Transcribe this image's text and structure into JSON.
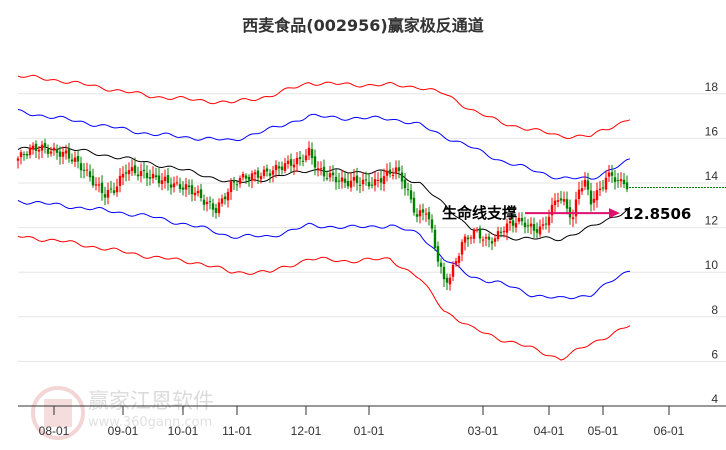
{
  "chart_data": {
    "type": "candlestick",
    "title": "西麦食品(002956)赢家极反通道",
    "ylim": [
      4,
      19
    ],
    "yticks": [
      4,
      6,
      8,
      10,
      12,
      14,
      16,
      18
    ],
    "xlim": [
      0,
      224
    ],
    "xticks": [
      {
        "label": "08-01",
        "i": 12
      },
      {
        "label": "09-01",
        "i": 35
      },
      {
        "label": "10-01",
        "i": 55
      },
      {
        "label": "11-01",
        "i": 73
      },
      {
        "label": "12-01",
        "i": 96
      },
      {
        "label": "01-01",
        "i": 117
      },
      {
        "label": "03-01",
        "i": 155
      },
      {
        "label": "04-01",
        "i": 177
      },
      {
        "label": "05-01",
        "i": 195
      },
      {
        "label": "06-01",
        "i": 217
      }
    ],
    "close": [
      [
        0,
        15.1
      ],
      [
        4,
        15.5
      ],
      [
        7,
        15.6
      ],
      [
        12,
        15.4
      ],
      [
        16,
        15.3
      ],
      [
        19,
        15.0
      ],
      [
        22,
        14.6
      ],
      [
        26,
        13.9
      ],
      [
        29,
        13.5
      ],
      [
        32,
        13.7
      ],
      [
        36,
        14.6
      ],
      [
        39,
        14.5
      ],
      [
        42,
        14.4
      ],
      [
        46,
        14.2
      ],
      [
        49,
        14.1
      ],
      [
        52,
        13.9
      ],
      [
        56,
        13.8
      ],
      [
        59,
        13.6
      ],
      [
        62,
        13.2
      ],
      [
        66,
        12.8
      ],
      [
        68,
        13.2
      ],
      [
        71,
        13.9
      ],
      [
        74,
        14.2
      ],
      [
        77,
        14.3
      ],
      [
        81,
        14.4
      ],
      [
        84,
        14.5
      ],
      [
        87,
        14.7
      ],
      [
        91,
        14.9
      ],
      [
        94,
        15.0
      ],
      [
        97,
        15.4
      ],
      [
        100,
        14.6
      ],
      [
        102,
        14.4
      ],
      [
        106,
        14.2
      ],
      [
        109,
        14.0
      ],
      [
        112,
        14.1
      ],
      [
        116,
        14.0
      ],
      [
        119,
        14.0
      ],
      [
        122,
        14.3
      ],
      [
        126,
        14.6
      ],
      [
        128,
        14.2
      ],
      [
        131,
        13.2
      ],
      [
        133,
        12.5
      ],
      [
        136,
        12.8
      ],
      [
        138,
        11.8
      ],
      [
        140,
        10.6
      ],
      [
        142,
        9.6
      ],
      [
        144,
        9.8
      ],
      [
        146,
        10.5
      ],
      [
        148,
        11.3
      ],
      [
        151,
        11.7
      ],
      [
        153,
        11.8
      ],
      [
        156,
        11.4
      ],
      [
        159,
        11.5
      ],
      [
        162,
        12.0
      ],
      [
        166,
        12.3
      ],
      [
        169,
        12.2
      ],
      [
        172,
        11.9
      ],
      [
        175,
        12.0
      ],
      [
        177,
        12.6
      ],
      [
        180,
        13.4
      ],
      [
        182,
        13.1
      ],
      [
        185,
        12.4
      ],
      [
        187,
        13.8
      ],
      [
        189,
        14.0
      ],
      [
        191,
        13.2
      ],
      [
        193,
        13.5
      ],
      [
        196,
        14.2
      ],
      [
        198,
        14.4
      ],
      [
        200,
        14.0
      ],
      [
        202,
        14.1
      ],
      [
        203,
        13.8
      ]
    ],
    "series": [
      {
        "color": "#000000",
        "points": [
          [
            0,
            15.5
          ],
          [
            14,
            15.6
          ],
          [
            27,
            15.3
          ],
          [
            44,
            14.9
          ],
          [
            61,
            14.4
          ],
          [
            71,
            14.0
          ],
          [
            84,
            14.2
          ],
          [
            97,
            14.6
          ],
          [
            111,
            14.5
          ],
          [
            124,
            14.5
          ],
          [
            134,
            14.0
          ],
          [
            142,
            13.0
          ],
          [
            151,
            12.0
          ],
          [
            161,
            11.6
          ],
          [
            171,
            11.5
          ],
          [
            181,
            11.5
          ],
          [
            191,
            12.0
          ],
          [
            204,
            12.85
          ]
        ]
      },
      {
        "color": "#0000ff",
        "points": [
          [
            0,
            17.2
          ],
          [
            14,
            16.9
          ],
          [
            27,
            16.6
          ],
          [
            44,
            16.2
          ],
          [
            61,
            16.0
          ],
          [
            71,
            15.9
          ],
          [
            84,
            16.4
          ],
          [
            97,
            17.0
          ],
          [
            111,
            16.9
          ],
          [
            124,
            16.9
          ],
          [
            134,
            16.6
          ],
          [
            142,
            16.1
          ],
          [
            151,
            15.6
          ],
          [
            161,
            15.0
          ],
          [
            171,
            14.6
          ],
          [
            181,
            14.2
          ],
          [
            191,
            14.2
          ],
          [
            204,
            15.0
          ]
        ]
      },
      {
        "color": "#0000ff",
        "points": [
          [
            0,
            13.2
          ],
          [
            14,
            13.0
          ],
          [
            27,
            12.8
          ],
          [
            44,
            12.5
          ],
          [
            61,
            12.0
          ],
          [
            71,
            11.6
          ],
          [
            84,
            11.6
          ],
          [
            97,
            12.1
          ],
          [
            111,
            12.0
          ],
          [
            124,
            12.1
          ],
          [
            134,
            11.7
          ],
          [
            142,
            10.6
          ],
          [
            151,
            9.8
          ],
          [
            161,
            9.5
          ],
          [
            171,
            9.0
          ],
          [
            181,
            8.8
          ],
          [
            191,
            9.0
          ],
          [
            204,
            10.1
          ]
        ]
      },
      {
        "color": "#ff0000",
        "points": [
          [
            0,
            18.8
          ],
          [
            14,
            18.6
          ],
          [
            27,
            18.3
          ],
          [
            44,
            17.9
          ],
          [
            61,
            17.7
          ],
          [
            71,
            17.6
          ],
          [
            84,
            17.9
          ],
          [
            97,
            18.5
          ],
          [
            111,
            18.4
          ],
          [
            124,
            18.4
          ],
          [
            134,
            18.3
          ],
          [
            142,
            18.0
          ],
          [
            151,
            17.3
          ],
          [
            161,
            16.7
          ],
          [
            171,
            16.4
          ],
          [
            181,
            16.1
          ],
          [
            191,
            16.1
          ],
          [
            204,
            16.9
          ]
        ]
      },
      {
        "color": "#ff0000",
        "points": [
          [
            0,
            11.6
          ],
          [
            14,
            11.4
          ],
          [
            27,
            11.1
          ],
          [
            44,
            10.7
          ],
          [
            61,
            10.4
          ],
          [
            71,
            10.0
          ],
          [
            84,
            10.0
          ],
          [
            97,
            10.6
          ],
          [
            111,
            10.5
          ],
          [
            124,
            10.6
          ],
          [
            134,
            9.7
          ],
          [
            142,
            8.3
          ],
          [
            151,
            7.5
          ],
          [
            161,
            7.0
          ],
          [
            171,
            6.6
          ],
          [
            181,
            6.1
          ],
          [
            191,
            6.8
          ],
          [
            204,
            7.6
          ]
        ]
      }
    ],
    "last_close": 13.8,
    "annotation": {
      "label": "生命线支撑",
      "value": "12.8506"
    },
    "colors": {
      "up": "#ff0000",
      "down": "#008000",
      "arrow": "#e0116e",
      "dashed": "#008000"
    }
  },
  "watermark": {
    "brand": "赢家江恩软件",
    "url": "www.360gann.com",
    "seal": "江赢恩家"
  }
}
